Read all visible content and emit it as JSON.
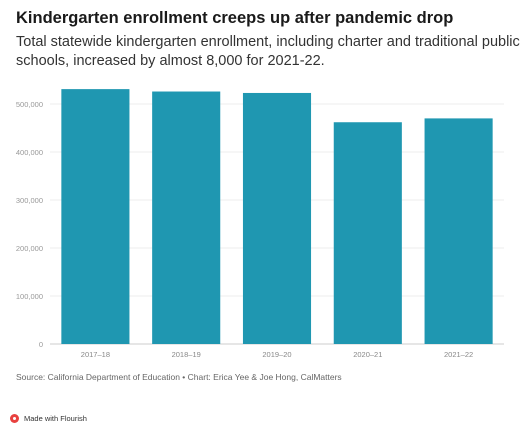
{
  "title": "Kindergarten enrollment creeps up after pandemic drop",
  "subtitle": "Total statewide kindergarten enrollment, including charter and traditional public schools, increased by almost 8,000 for 2021-22.",
  "source": "Source: California Department of Education • Chart: Erica Yee & Joe Hong, CalMatters",
  "credit": "Made with Flourish",
  "colors": {
    "bar": "#1f97b1",
    "grid": "#eeeeee",
    "axis": "#cccccc"
  },
  "chart_data": {
    "type": "bar",
    "categories": [
      "2017–18",
      "2018–19",
      "2019–20",
      "2020–21",
      "2021–22"
    ],
    "values": [
      531000,
      526000,
      523000,
      462000,
      470000
    ],
    "ylim": [
      0,
      550000
    ],
    "yticks": [
      0,
      100000,
      200000,
      300000,
      400000,
      500000
    ],
    "ytick_labels": [
      "0",
      "100,000",
      "200,000",
      "300,000",
      "400,000",
      "500,000"
    ],
    "grid": true,
    "xlabel": "",
    "ylabel": ""
  }
}
